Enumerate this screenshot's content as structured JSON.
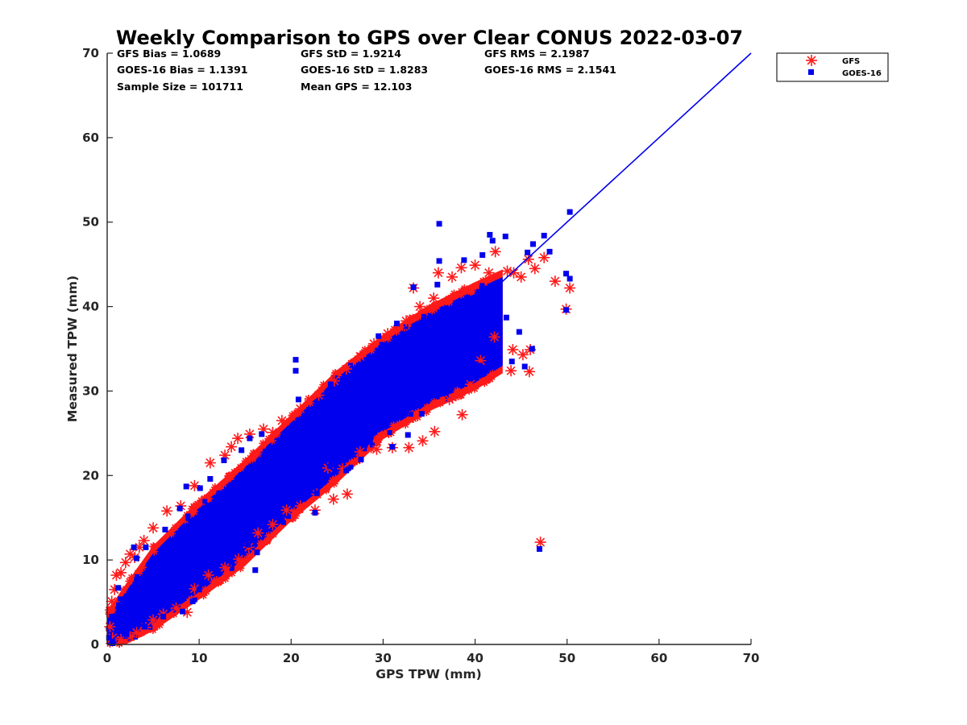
{
  "chart_data": {
    "type": "scatter",
    "title": "Weekly Comparison to GPS over Clear CONUS 2022-03-07",
    "xlabel": "GPS TPW (mm)",
    "ylabel": "Measured TPW (mm)",
    "xlim": [
      0,
      70
    ],
    "ylim": [
      0,
      70
    ],
    "xticks": [
      "0",
      "10",
      "20",
      "30",
      "40",
      "50",
      "60",
      "70"
    ],
    "yticks": [
      "0",
      "10",
      "20",
      "30",
      "40",
      "50",
      "60",
      "70"
    ],
    "grid": false,
    "legend_position": "outside top-right",
    "stats": [
      [
        "GFS Bias = 1.0689",
        "GFS StD = 1.9214",
        "GFS RMS = 2.1987"
      ],
      [
        "GOES-16 Bias = 1.1391",
        "GOES-16 StD = 1.8283",
        "GOES-16 RMS = 2.1541"
      ],
      [
        "Sample Size = 101711",
        "Mean GPS = 12.103",
        ""
      ]
    ],
    "reference_line": {
      "x": [
        0,
        70
      ],
      "y": [
        0,
        70
      ],
      "color": "#0000ee"
    },
    "series": [
      {
        "name": "GFS",
        "marker": "asterisk",
        "color": "#ff1a1a",
        "points": [
          [
            0.3,
            2.1
          ],
          [
            0.5,
            5.1
          ],
          [
            0.8,
            6.5
          ],
          [
            1.0,
            8.2
          ],
          [
            1.5,
            8.5
          ],
          [
            2.0,
            9.7
          ],
          [
            2.5,
            10.7
          ],
          [
            3.0,
            10.3
          ],
          [
            3.5,
            11.5
          ],
          [
            4.0,
            12.3
          ],
          [
            5.0,
            13.8
          ],
          [
            6.5,
            15.8
          ],
          [
            8.0,
            16.4
          ],
          [
            9.5,
            18.8
          ],
          [
            11.2,
            21.5
          ],
          [
            12.8,
            22.4
          ],
          [
            13.5,
            23.4
          ],
          [
            14.2,
            24.4
          ],
          [
            15.5,
            24.9
          ],
          [
            17.0,
            25.5
          ],
          [
            18.0,
            25.1
          ],
          [
            19.0,
            26.5
          ],
          [
            21.0,
            27.9
          ],
          [
            23.0,
            29.5
          ],
          [
            24.7,
            31.2
          ],
          [
            26.0,
            32.6
          ],
          [
            27.5,
            34.1
          ],
          [
            29.0,
            35.6
          ],
          [
            30.5,
            36.8
          ],
          [
            31.7,
            37.6
          ],
          [
            32.5,
            38.3
          ],
          [
            33.3,
            42.2
          ],
          [
            34.0,
            40.0
          ],
          [
            35.5,
            41.0
          ],
          [
            36.0,
            44.0
          ],
          [
            37.5,
            43.5
          ],
          [
            38.5,
            44.6
          ],
          [
            40.0,
            44.9
          ],
          [
            41.5,
            44.0
          ],
          [
            42.2,
            46.5
          ],
          [
            43.5,
            44.2
          ],
          [
            44.2,
            44.0
          ],
          [
            45.0,
            43.5
          ],
          [
            45.8,
            45.6
          ],
          [
            46.5,
            44.5
          ],
          [
            47.5,
            45.8
          ],
          [
            48.7,
            43.0
          ],
          [
            50.3,
            42.2
          ],
          [
            49.9,
            39.7
          ],
          [
            47.1,
            12.1
          ],
          [
            45.9,
            32.3
          ],
          [
            46.0,
            34.9
          ],
          [
            43.9,
            32.4
          ],
          [
            45.2,
            34.3
          ],
          [
            44.1,
            34.9
          ],
          [
            42.1,
            36.4
          ],
          [
            40.6,
            33.6
          ],
          [
            39.5,
            30.8
          ],
          [
            38.6,
            27.2
          ],
          [
            37.2,
            29.0
          ],
          [
            35.6,
            25.2
          ],
          [
            34.3,
            24.1
          ],
          [
            32.8,
            23.3
          ],
          [
            31.0,
            23.3
          ],
          [
            29.3,
            23.1
          ],
          [
            27.5,
            22.8
          ],
          [
            25.6,
            20.8
          ],
          [
            24.0,
            20.9
          ],
          [
            22.8,
            17.8
          ],
          [
            22.6,
            15.9
          ],
          [
            24.6,
            17.2
          ],
          [
            26.1,
            17.8
          ],
          [
            21.0,
            16.4
          ],
          [
            19.5,
            15.9
          ],
          [
            18.0,
            14.2
          ],
          [
            16.4,
            13.2
          ],
          [
            15.4,
            11.5
          ],
          [
            14.3,
            10.1
          ],
          [
            12.8,
            9.1
          ],
          [
            11.0,
            8.2
          ],
          [
            9.5,
            6.6
          ],
          [
            8.7,
            3.8
          ],
          [
            7.5,
            4.3
          ],
          [
            6.1,
            3.6
          ],
          [
            5.0,
            2.9
          ],
          [
            4.2,
            2.0
          ],
          [
            3.2,
            1.4
          ],
          [
            2.5,
            0.9
          ],
          [
            1.5,
            0.6
          ],
          [
            0.6,
            0.8
          ]
        ]
      },
      {
        "name": "GOES-16",
        "marker": "square",
        "color": "#0000ee",
        "points": [
          [
            0.2,
            0.8
          ],
          [
            0.5,
            3.3
          ],
          [
            1.2,
            6.7
          ],
          [
            2.9,
            11.5
          ],
          [
            3.2,
            10.2
          ],
          [
            4.2,
            11.5
          ],
          [
            6.3,
            13.6
          ],
          [
            7.9,
            16.1
          ],
          [
            8.6,
            18.7
          ],
          [
            10.1,
            18.5
          ],
          [
            11.2,
            19.6
          ],
          [
            12.7,
            21.8
          ],
          [
            14.6,
            23.0
          ],
          [
            15.5,
            24.4
          ],
          [
            16.8,
            24.9
          ],
          [
            20.5,
            33.7
          ],
          [
            20.5,
            32.4
          ],
          [
            20.8,
            29.0
          ],
          [
            24.3,
            30.8
          ],
          [
            29.5,
            36.5
          ],
          [
            31.5,
            38.0
          ],
          [
            33.3,
            42.3
          ],
          [
            35.9,
            42.6
          ],
          [
            36.1,
            45.4
          ],
          [
            36.1,
            49.8
          ],
          [
            38.8,
            45.5
          ],
          [
            40.8,
            46.1
          ],
          [
            41.6,
            48.5
          ],
          [
            41.9,
            47.8
          ],
          [
            43.3,
            48.3
          ],
          [
            45.7,
            46.4
          ],
          [
            46.3,
            47.4
          ],
          [
            47.5,
            48.4
          ],
          [
            48.1,
            46.5
          ],
          [
            49.9,
            43.9
          ],
          [
            50.3,
            51.2
          ],
          [
            50.3,
            43.3
          ],
          [
            49.9,
            39.6
          ],
          [
            47.0,
            11.3
          ],
          [
            45.4,
            32.9
          ],
          [
            46.2,
            35.0
          ],
          [
            44.0,
            33.5
          ],
          [
            44.8,
            37.0
          ],
          [
            43.4,
            38.7
          ],
          [
            41.2,
            35.4
          ],
          [
            40.4,
            33.0
          ],
          [
            39.5,
            31.5
          ],
          [
            36.5,
            29.7
          ],
          [
            34.2,
            27.3
          ],
          [
            32.7,
            24.8
          ],
          [
            31.0,
            23.4
          ],
          [
            27.6,
            21.9
          ],
          [
            26.0,
            20.6
          ],
          [
            24.2,
            21.1
          ],
          [
            22.8,
            17.9
          ],
          [
            22.6,
            15.6
          ],
          [
            20.4,
            19.6
          ],
          [
            18.3,
            17.1
          ],
          [
            17.6,
            15.6
          ],
          [
            16.3,
            10.9
          ],
          [
            16.1,
            8.8
          ],
          [
            15.3,
            11.8
          ],
          [
            13.5,
            10.7
          ],
          [
            12.0,
            8.5
          ],
          [
            10.0,
            6.5
          ],
          [
            9.3,
            5.1
          ],
          [
            8.2,
            3.9
          ],
          [
            6.1,
            3.3
          ],
          [
            4.1,
            2.1
          ],
          [
            2.1,
            1.2
          ],
          [
            0.6,
            0.3
          ]
        ]
      }
    ],
    "main_band": {
      "note_values": "dense cluster around reference line, data units",
      "x": [
        0,
        2,
        5,
        10,
        15,
        20,
        25,
        30,
        35,
        40,
        43
      ],
      "y_low": [
        0.3,
        0.6,
        2.5,
        6.2,
        10.2,
        15.5,
        20.0,
        25.2,
        28.5,
        31.0,
        33.0
      ],
      "y_high": [
        3.0,
        6.2,
        10.8,
        16.2,
        21.0,
        26.3,
        31.6,
        35.8,
        39.3,
        42.0,
        43.5
      ]
    }
  }
}
